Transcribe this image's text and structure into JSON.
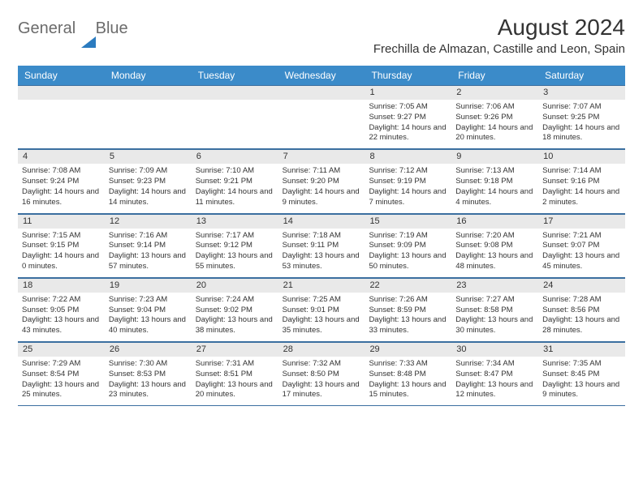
{
  "logo": {
    "text1": "General",
    "text2": "Blue"
  },
  "title": "August 2024",
  "location": "Frechilla de Almazan, Castille and Leon, Spain",
  "colors": {
    "header_bg": "#3b8bc9",
    "header_text": "#ffffff",
    "daynum_bg": "#e9e9e9",
    "week_border": "#3b6fa0",
    "logo_gray": "#6b6b6b",
    "logo_blue": "#2b7bbf"
  },
  "day_headers": [
    "Sunday",
    "Monday",
    "Tuesday",
    "Wednesday",
    "Thursday",
    "Friday",
    "Saturday"
  ],
  "weeks": [
    {
      "nums": [
        "",
        "",
        "",
        "",
        "1",
        "2",
        "3"
      ],
      "cells": [
        "",
        "",
        "",
        "",
        "Sunrise: 7:05 AM\nSunset: 9:27 PM\nDaylight: 14 hours and 22 minutes.",
        "Sunrise: 7:06 AM\nSunset: 9:26 PM\nDaylight: 14 hours and 20 minutes.",
        "Sunrise: 7:07 AM\nSunset: 9:25 PM\nDaylight: 14 hours and 18 minutes."
      ]
    },
    {
      "nums": [
        "4",
        "5",
        "6",
        "7",
        "8",
        "9",
        "10"
      ],
      "cells": [
        "Sunrise: 7:08 AM\nSunset: 9:24 PM\nDaylight: 14 hours and 16 minutes.",
        "Sunrise: 7:09 AM\nSunset: 9:23 PM\nDaylight: 14 hours and 14 minutes.",
        "Sunrise: 7:10 AM\nSunset: 9:21 PM\nDaylight: 14 hours and 11 minutes.",
        "Sunrise: 7:11 AM\nSunset: 9:20 PM\nDaylight: 14 hours and 9 minutes.",
        "Sunrise: 7:12 AM\nSunset: 9:19 PM\nDaylight: 14 hours and 7 minutes.",
        "Sunrise: 7:13 AM\nSunset: 9:18 PM\nDaylight: 14 hours and 4 minutes.",
        "Sunrise: 7:14 AM\nSunset: 9:16 PM\nDaylight: 14 hours and 2 minutes."
      ]
    },
    {
      "nums": [
        "11",
        "12",
        "13",
        "14",
        "15",
        "16",
        "17"
      ],
      "cells": [
        "Sunrise: 7:15 AM\nSunset: 9:15 PM\nDaylight: 14 hours and 0 minutes.",
        "Sunrise: 7:16 AM\nSunset: 9:14 PM\nDaylight: 13 hours and 57 minutes.",
        "Sunrise: 7:17 AM\nSunset: 9:12 PM\nDaylight: 13 hours and 55 minutes.",
        "Sunrise: 7:18 AM\nSunset: 9:11 PM\nDaylight: 13 hours and 53 minutes.",
        "Sunrise: 7:19 AM\nSunset: 9:09 PM\nDaylight: 13 hours and 50 minutes.",
        "Sunrise: 7:20 AM\nSunset: 9:08 PM\nDaylight: 13 hours and 48 minutes.",
        "Sunrise: 7:21 AM\nSunset: 9:07 PM\nDaylight: 13 hours and 45 minutes."
      ]
    },
    {
      "nums": [
        "18",
        "19",
        "20",
        "21",
        "22",
        "23",
        "24"
      ],
      "cells": [
        "Sunrise: 7:22 AM\nSunset: 9:05 PM\nDaylight: 13 hours and 43 minutes.",
        "Sunrise: 7:23 AM\nSunset: 9:04 PM\nDaylight: 13 hours and 40 minutes.",
        "Sunrise: 7:24 AM\nSunset: 9:02 PM\nDaylight: 13 hours and 38 minutes.",
        "Sunrise: 7:25 AM\nSunset: 9:01 PM\nDaylight: 13 hours and 35 minutes.",
        "Sunrise: 7:26 AM\nSunset: 8:59 PM\nDaylight: 13 hours and 33 minutes.",
        "Sunrise: 7:27 AM\nSunset: 8:58 PM\nDaylight: 13 hours and 30 minutes.",
        "Sunrise: 7:28 AM\nSunset: 8:56 PM\nDaylight: 13 hours and 28 minutes."
      ]
    },
    {
      "nums": [
        "25",
        "26",
        "27",
        "28",
        "29",
        "30",
        "31"
      ],
      "cells": [
        "Sunrise: 7:29 AM\nSunset: 8:54 PM\nDaylight: 13 hours and 25 minutes.",
        "Sunrise: 7:30 AM\nSunset: 8:53 PM\nDaylight: 13 hours and 23 minutes.",
        "Sunrise: 7:31 AM\nSunset: 8:51 PM\nDaylight: 13 hours and 20 minutes.",
        "Sunrise: 7:32 AM\nSunset: 8:50 PM\nDaylight: 13 hours and 17 minutes.",
        "Sunrise: 7:33 AM\nSunset: 8:48 PM\nDaylight: 13 hours and 15 minutes.",
        "Sunrise: 7:34 AM\nSunset: 8:47 PM\nDaylight: 13 hours and 12 minutes.",
        "Sunrise: 7:35 AM\nSunset: 8:45 PM\nDaylight: 13 hours and 9 minutes."
      ]
    }
  ]
}
